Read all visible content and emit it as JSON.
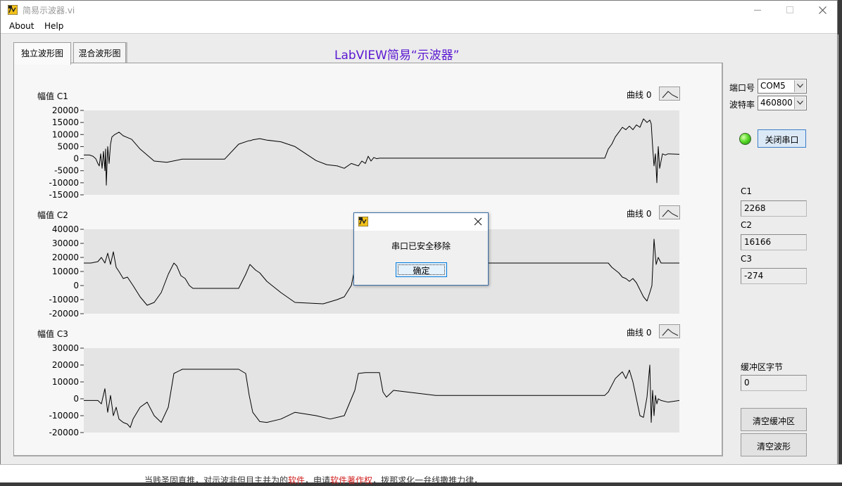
{
  "window": {
    "title": "简易示波器.vi"
  },
  "menu": {
    "items": [
      "About",
      "Help"
    ]
  },
  "tabs": [
    {
      "label": "独立波形图",
      "active": true
    },
    {
      "label": "混合波形图",
      "active": false
    }
  ],
  "vi_title": "LabVIEW简易“示波器”",
  "charts": [
    {
      "label": "幅值 C1",
      "legend": "曲线 0"
    },
    {
      "label": "幅值 C2",
      "legend": "曲线 0"
    },
    {
      "label": "幅值 C3",
      "legend": "曲线 0"
    }
  ],
  "serial": {
    "port_label": "端口号",
    "port_value": "COM5",
    "baud_label": "波特率",
    "baud_value": "460800",
    "close_button": "关闭串口",
    "led_state": "on",
    "led_color": "#5cdc2a"
  },
  "channels": {
    "c1_label": "C1",
    "c1_value": "2268",
    "c2_label": "C2",
    "c2_value": "16166",
    "c3_label": "C3",
    "c3_value": "-274"
  },
  "buffer": {
    "label": "缓冲区字节",
    "value": "0",
    "clear_buffer_button": "清空缓冲区",
    "clear_waveform_button": "清空波形"
  },
  "dialog": {
    "message": "串口已安全移除",
    "ok_button": "确定"
  },
  "background_text": {
    "part1": "当贱圣固直推，对示波非但目主并为的",
    "hl1": "软件",
    "part2": "，申请",
    "hl2": "软件著作权",
    "part3": "，拨那求化一弁线撒推力律，"
  },
  "colors": {
    "title_accent": "#5a17d2",
    "plot_background": "#e4e4e4",
    "trace": "#000000"
  },
  "chart_data": [
    {
      "type": "line",
      "title": "幅值 C1",
      "ylim": [
        -15000,
        20000
      ],
      "yticks": [
        20000,
        15000,
        10000,
        5000,
        0,
        -5000,
        -10000,
        -15000
      ],
      "series": [
        {
          "name": "曲线 0",
          "x": [
            0,
            8,
            13,
            17,
            20,
            22,
            24,
            26,
            28,
            30,
            31,
            32,
            34,
            36,
            38,
            40,
            44,
            50,
            56,
            60,
            68,
            80,
            100,
            118,
            140,
            160,
            180,
            200,
            220,
            234,
            237,
            240,
            250,
            260,
            280,
            300,
            330,
            345,
            360,
            370,
            380,
            390,
            395,
            400,
            404,
            408,
            412,
            416,
            420,
            425,
            430,
            435,
            440,
            460,
            500,
            600,
            700,
            740,
            745,
            750,
            755,
            760,
            765,
            770,
            775,
            780,
            785,
            790,
            795,
            800,
            804,
            806,
            808,
            810,
            812,
            814,
            816,
            818,
            822,
            826,
            830,
            846
          ],
          "values": [
            1500,
            1500,
            1000,
            0,
            -2000,
            -3000,
            2000,
            -4000,
            3000,
            -5000,
            4000,
            -11000,
            5000,
            -2000,
            6000,
            9000,
            10000,
            11000,
            9500,
            9000,
            8000,
            4000,
            -1000,
            -1500,
            -200,
            -200,
            -200,
            -200,
            6000,
            7400,
            7500,
            7800,
            8300,
            7700,
            7000,
            5000,
            -800,
            -2500,
            -3000,
            -4000,
            -2000,
            -3000,
            -1000,
            -2000,
            1000,
            -1000,
            500,
            0,
            200,
            200,
            200,
            200,
            200,
            200,
            200,
            200,
            200,
            200,
            4000,
            6000,
            9000,
            11000,
            13000,
            12000,
            13500,
            12000,
            14000,
            13000,
            16500,
            15000,
            16000,
            14500,
            5000,
            -3000,
            2000,
            -10000,
            5000,
            -4000,
            2000,
            1500,
            2000,
            1800
          ]
        }
      ]
    },
    {
      "type": "line",
      "title": "幅值 C2",
      "ylim": [
        -20000,
        40000
      ],
      "yticks": [
        40000,
        30000,
        20000,
        10000,
        0,
        -10000,
        -20000
      ],
      "series": [
        {
          "name": "曲线 0",
          "x": [
            0,
            10,
            20,
            25,
            30,
            34,
            38,
            42,
            46,
            50,
            56,
            62,
            70,
            80,
            90,
            100,
            110,
            120,
            128,
            132,
            138,
            144,
            150,
            155,
            160,
            170,
            190,
            220,
            230,
            236,
            240,
            244,
            250,
            260,
            280,
            300,
            340,
            360,
            370,
            380,
            385,
            400,
            500,
            600,
            700,
            745,
            750,
            755,
            760,
            765,
            770,
            775,
            780,
            785,
            790,
            795,
            800,
            804,
            807,
            810,
            813,
            816,
            820,
            830,
            846
          ],
          "values": [
            16000,
            16000,
            17000,
            20000,
            16000,
            23000,
            15000,
            24000,
            13000,
            10000,
            5000,
            6000,
            0,
            -8000,
            -14000,
            -12000,
            -5000,
            8000,
            16000,
            14000,
            7000,
            5000,
            0,
            -2000,
            -2000,
            -2000,
            -2000,
            -2000,
            8000,
            15000,
            13000,
            11000,
            9000,
            3000,
            -5000,
            -12000,
            -13000,
            -10000,
            -8000,
            0,
            12000,
            16000,
            16000,
            16000,
            16000,
            16000,
            13000,
            11000,
            9000,
            6000,
            5000,
            3000,
            5000,
            2000,
            -3000,
            -8000,
            -11000,
            -5000,
            0,
            33000,
            15000,
            20000,
            16000,
            16000,
            16000
          ]
        }
      ]
    },
    {
      "type": "line",
      "title": "幅值 C3",
      "ylim": [
        -20000,
        30000
      ],
      "yticks": [
        30000,
        20000,
        10000,
        0,
        -10000,
        -20000
      ],
      "series": [
        {
          "name": "曲线 0",
          "x": [
            0,
            20,
            25,
            30,
            34,
            38,
            42,
            46,
            50,
            56,
            62,
            66,
            70,
            80,
            90,
            100,
            110,
            120,
            128,
            140,
            160,
            190,
            220,
            230,
            235,
            240,
            250,
            260,
            280,
            300,
            330,
            350,
            370,
            380,
            385,
            390,
            400,
            420,
            425,
            430,
            440,
            500,
            600,
            700,
            740,
            745,
            750,
            755,
            760,
            765,
            770,
            775,
            780,
            785,
            790,
            795,
            800,
            804,
            806,
            808,
            810,
            812,
            814,
            816,
            820,
            830,
            846
          ],
          "values": [
            -1000,
            -1000,
            -3000,
            6000,
            -8000,
            2000,
            -10000,
            -5000,
            -12000,
            -14000,
            -15000,
            -17000,
            -12000,
            -5000,
            -2000,
            -10000,
            -14000,
            -5000,
            15000,
            17500,
            17500,
            17500,
            17500,
            15000,
            2000,
            -8000,
            -13500,
            -14000,
            -12000,
            -8000,
            -10000,
            -12000,
            -10000,
            0,
            5000,
            15000,
            15500,
            15500,
            4000,
            1000,
            5000,
            2000,
            2000,
            2000,
            2000,
            4000,
            8000,
            12000,
            14000,
            16000,
            12000,
            17000,
            10000,
            0,
            -10000,
            -11000,
            1000,
            20000,
            -14000,
            5000,
            -10000,
            2000,
            -3000,
            0,
            -1000,
            -2000,
            -1000
          ]
        }
      ]
    }
  ]
}
